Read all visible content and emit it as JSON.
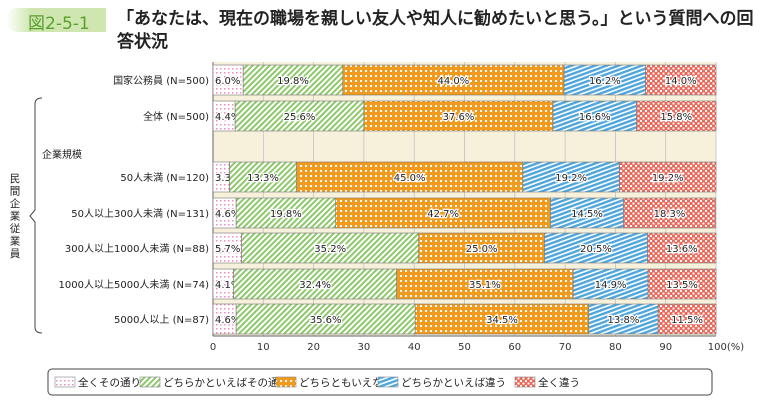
{
  "figure_number": "図2-5-1",
  "title": "「あなたは、現在の職場を親しい友人や知人に勧めたいと思う。」という質問への回答状況",
  "chart_data": {
    "type": "bar",
    "stacked": true,
    "orientation": "horizontal",
    "title": "「あなたは、現在の職場を親しい友人や知人に勧めたいと思う。」という質問への回答状況",
    "categories": [
      "国家公務員 (N=500)",
      "全体 (N=500)",
      "50人未満 (N=120)",
      "50人以上300人未満 (N=131)",
      "300人以上1000人未満 (N=88)",
      "1000人以上5000人未満 (N=74)",
      "5000人以上 (N=87)"
    ],
    "group_label": "民間企業従業員",
    "subgroup_label": "企業規模",
    "series": [
      {
        "name": "全くその通り",
        "color": "#f7b8d8",
        "values": [
          6.0,
          4.4,
          3.3,
          4.6,
          5.7,
          4.1,
          4.6
        ]
      },
      {
        "name": "どちらかといえばその通り",
        "color": "#8dc86a",
        "values": [
          19.8,
          25.6,
          13.3,
          19.8,
          35.2,
          32.4,
          35.6
        ]
      },
      {
        "name": "どちらともいえない",
        "color": "#f29a1e",
        "values": [
          44.0,
          37.6,
          45.0,
          42.7,
          25.0,
          35.1,
          34.5
        ]
      },
      {
        "name": "どちらかといえば違う",
        "color": "#4ea6dc",
        "values": [
          16.2,
          16.6,
          19.2,
          14.5,
          20.5,
          14.9,
          13.8
        ]
      },
      {
        "name": "全く違う",
        "color": "#ec6a5c",
        "values": [
          14.0,
          15.8,
          19.2,
          18.3,
          13.6,
          13.5,
          11.5
        ]
      }
    ],
    "xlim": [
      0,
      100
    ],
    "xticks": [
      "0",
      "10",
      "20",
      "30",
      "40",
      "50",
      "60",
      "70",
      "80",
      "90",
      "100(%)"
    ],
    "legend": "bottom",
    "grid": true
  }
}
